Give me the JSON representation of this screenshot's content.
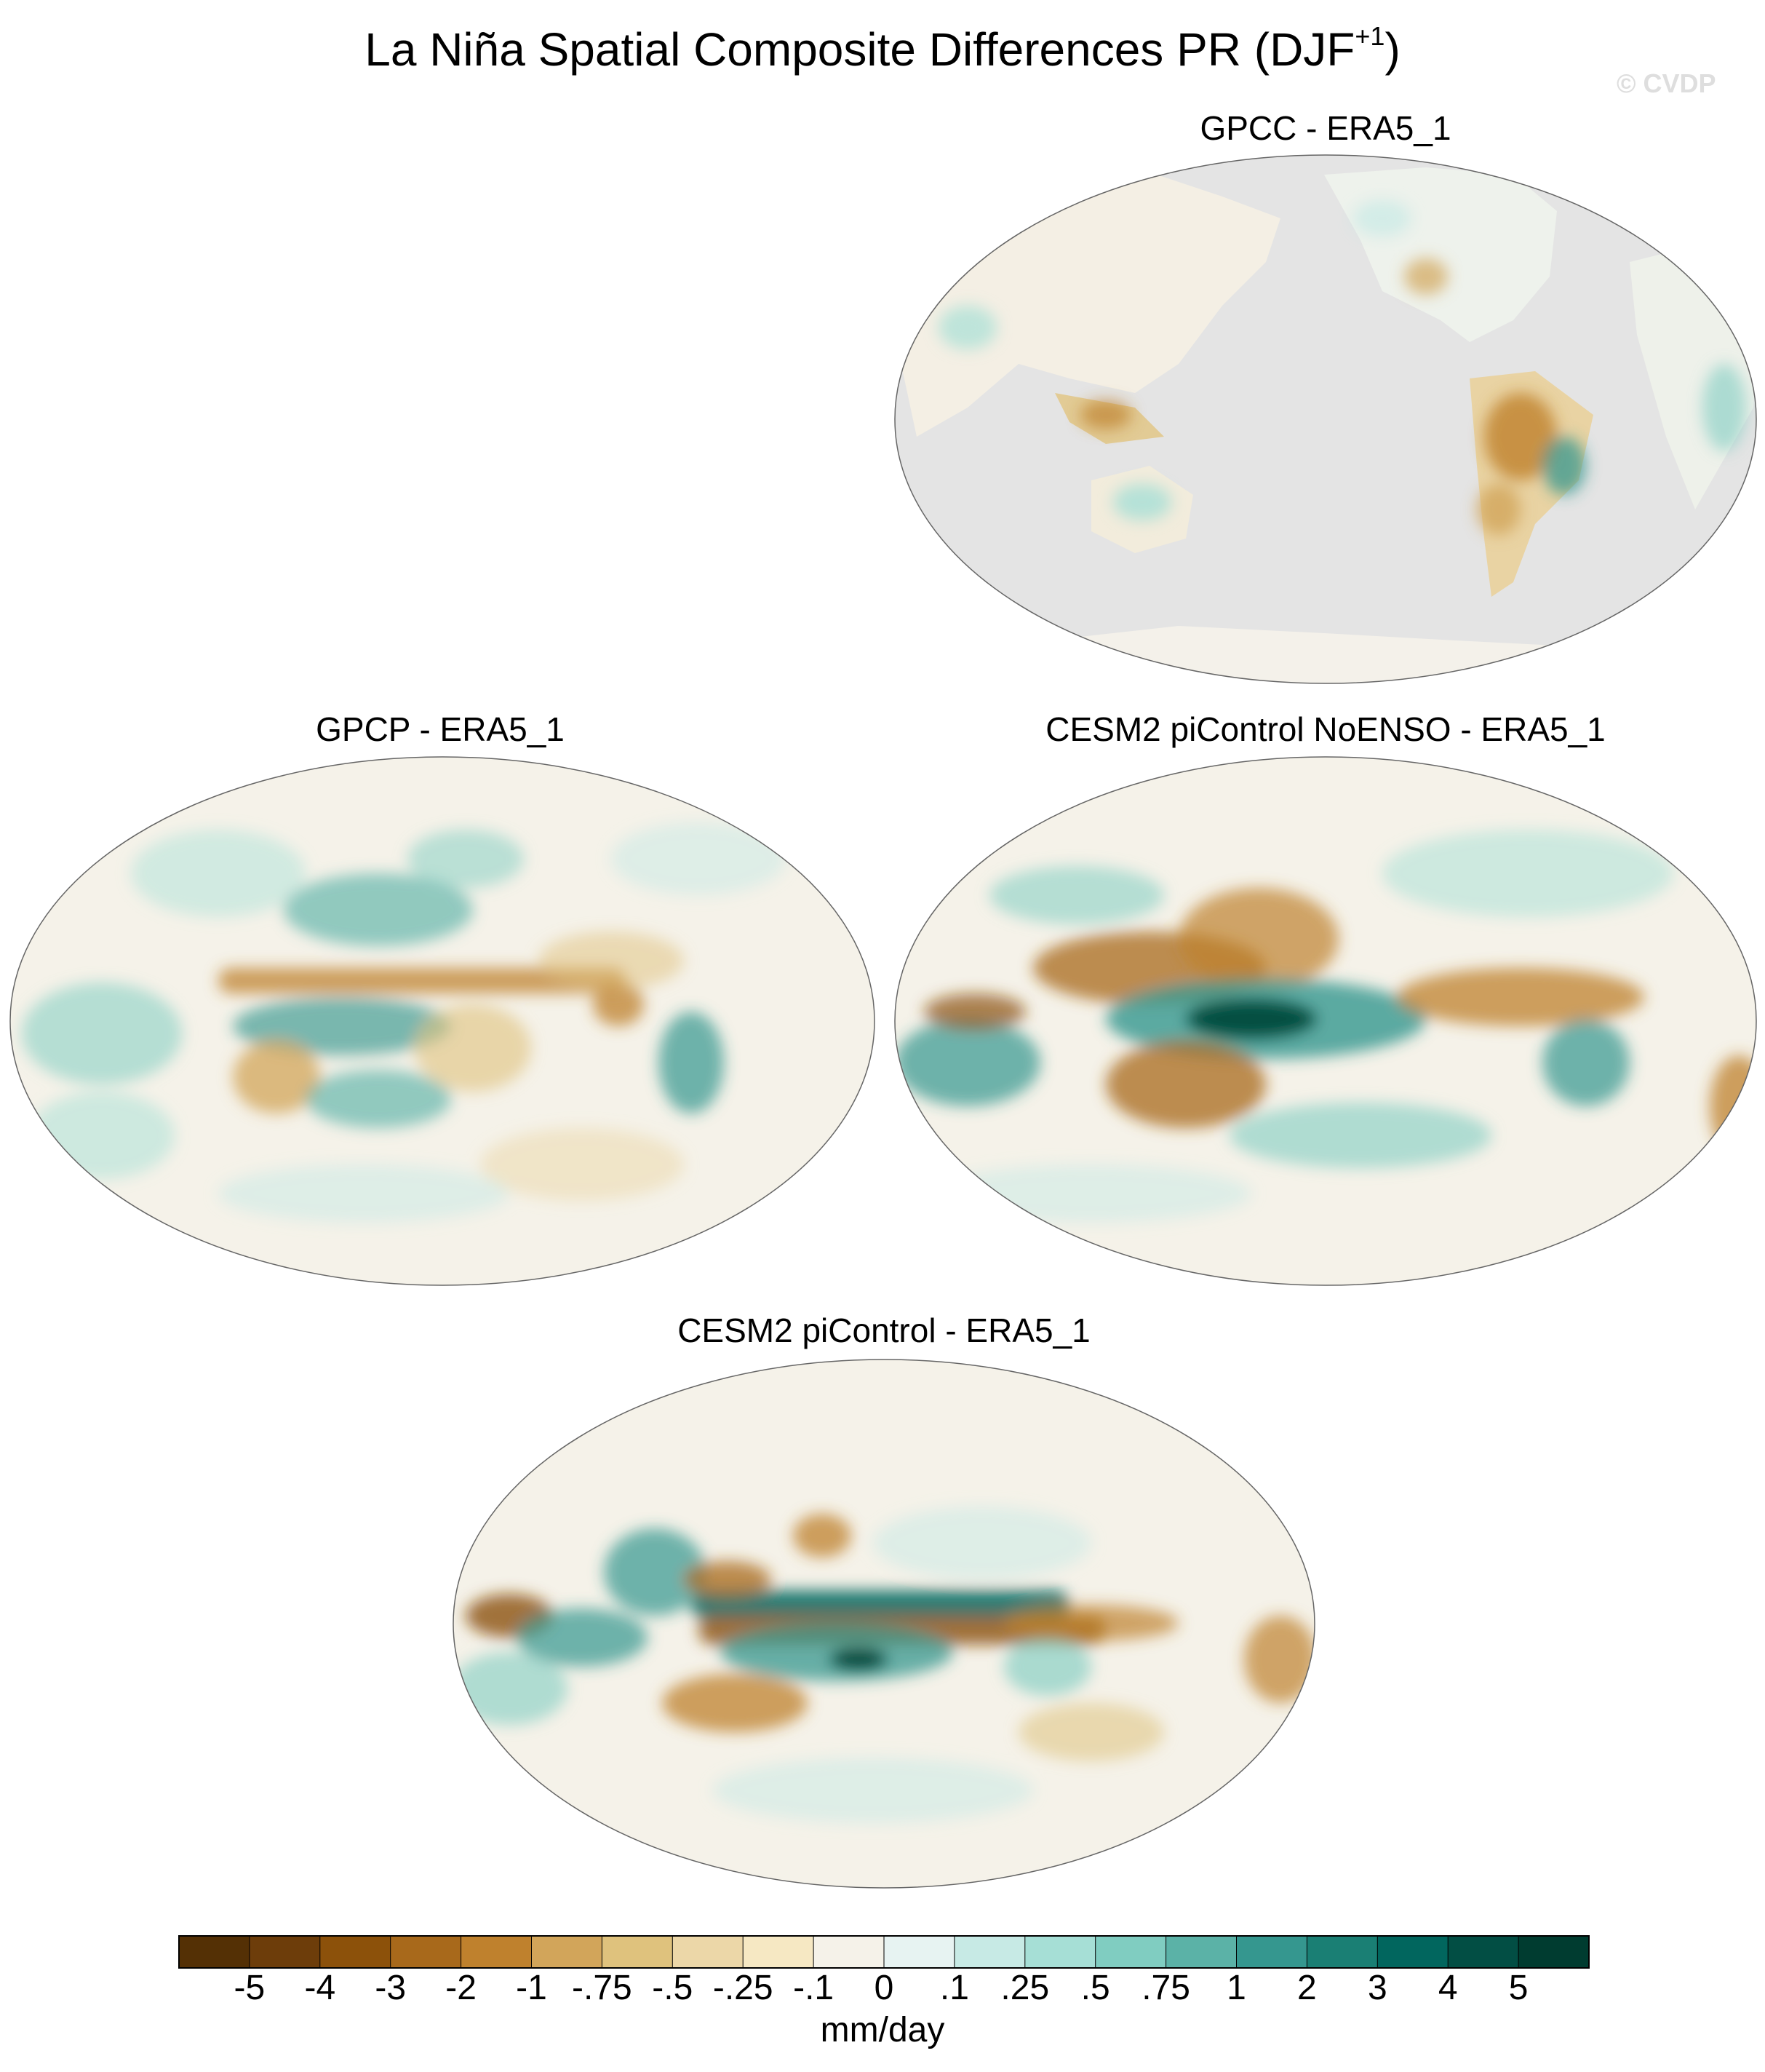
{
  "figure": {
    "title": "La Niña Spatial Composite Differences PR (DJF",
    "title_superscript": "+1",
    "title_suffix": ")",
    "watermark": "© CVDP",
    "units": "mm/day"
  },
  "panels": [
    {
      "id": "gpcc",
      "title": "GPCC - ERA5_1",
      "coverage": "land-only",
      "ocean_color": "#e4e4e4"
    },
    {
      "id": "gpcp",
      "title": "GPCP - ERA5_1",
      "coverage": "global"
    },
    {
      "id": "cesm2-noenso",
      "title": "CESM2 piControl NoENSO - ERA5_1",
      "coverage": "global"
    },
    {
      "id": "cesm2",
      "title": "CESM2 piControl - ERA5_1",
      "coverage": "global"
    }
  ],
  "colorbar": {
    "levels": [
      "-5",
      "-4",
      "-3",
      "-2",
      "-1",
      "-.75",
      "-.5",
      "-.25",
      "-.1",
      "0",
      ".1",
      ".25",
      ".5",
      ".75",
      "1",
      "2",
      "3",
      "4",
      "5"
    ],
    "colors": [
      "#543005",
      "#6d3d0a",
      "#8c510a",
      "#a8691b",
      "#bf812d",
      "#d2a55a",
      "#dfc27d",
      "#ecd7a8",
      "#f6e8c3",
      "#f5f2e9",
      "#e7f3f2",
      "#c7eae5",
      "#a6dfd6",
      "#80cdc1",
      "#5bb2a7",
      "#35978f",
      "#1a7f74",
      "#01665e",
      "#024e44",
      "#003c30"
    ]
  }
}
